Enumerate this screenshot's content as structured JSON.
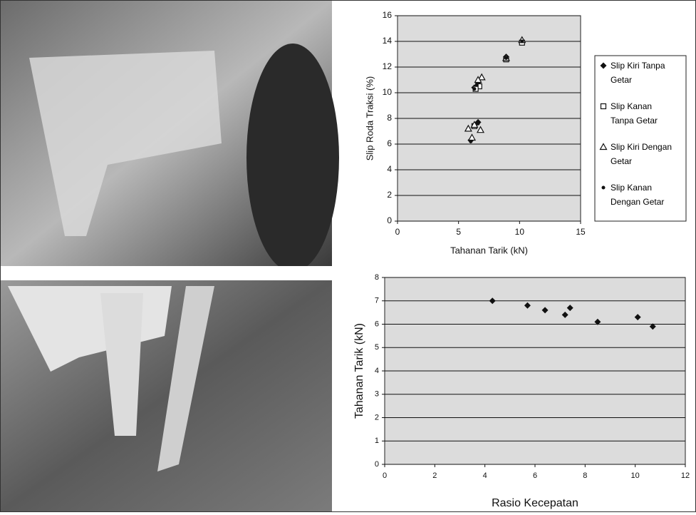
{
  "chart_data": [
    {
      "type": "scatter",
      "x_label": "Tahanan Tarik (kN)",
      "y_label": "Slip Roda Traksi (%)",
      "xlim": [
        0,
        15
      ],
      "xticks": [
        0,
        5,
        10,
        15
      ],
      "ylim": [
        0,
        16
      ],
      "yticks": [
        0,
        2,
        4,
        6,
        8,
        10,
        12,
        14,
        16
      ],
      "grid": true,
      "legend": "right",
      "series": [
        {
          "name": "Slip Kiri Tanpa Getar",
          "color": "#111111",
          "marker": "diamond",
          "x": [
            10.2,
            8.9,
            6.6,
            6.3,
            6.6,
            6.0
          ],
          "values": [
            14.0,
            12.8,
            10.7,
            10.4,
            7.7,
            6.3
          ]
        },
        {
          "name": "Slip Kanan Tanpa Getar",
          "color": "#111111",
          "marker": "square-open",
          "x": [
            10.2,
            8.9,
            6.7,
            6.4,
            6.3
          ],
          "values": [
            13.9,
            12.6,
            10.5,
            10.3,
            7.4
          ]
        },
        {
          "name": "Slip Kiri Dengan Getar",
          "color": "#111111",
          "marker": "triangle-open",
          "x": [
            10.2,
            8.9,
            6.9,
            6.6,
            5.8,
            6.1,
            6.8,
            6.3
          ],
          "values": [
            14.1,
            12.7,
            11.2,
            11.0,
            7.2,
            6.5,
            7.1,
            7.5
          ]
        },
        {
          "name": "Slip Kanan Dengan Getar",
          "color": "#111111",
          "marker": "dot",
          "x": [
            10.2,
            8.9,
            6.5,
            6.3,
            6.6,
            6.0
          ],
          "values": [
            14.0,
            12.7,
            10.6,
            10.3,
            7.6,
            6.2
          ]
        }
      ]
    },
    {
      "type": "scatter",
      "x_label": "Rasio Kecepatan",
      "y_label": "Tahanan Tarik (kN)",
      "xlim": [
        0,
        12
      ],
      "xticks": [
        0,
        2,
        4,
        6,
        8,
        10,
        12
      ],
      "ylim": [
        0,
        8
      ],
      "yticks": [
        0,
        1,
        2,
        3,
        4,
        5,
        6,
        7,
        8
      ],
      "grid": true,
      "series": [
        {
          "color": "#111111",
          "marker": "diamond",
          "x": [
            4.3,
            5.7,
            6.4,
            7.2,
            7.4,
            8.5,
            10.1,
            10.7
          ],
          "values": [
            7.0,
            6.8,
            6.6,
            6.4,
            6.7,
            6.1,
            6.3,
            5.9
          ]
        }
      ]
    }
  ]
}
